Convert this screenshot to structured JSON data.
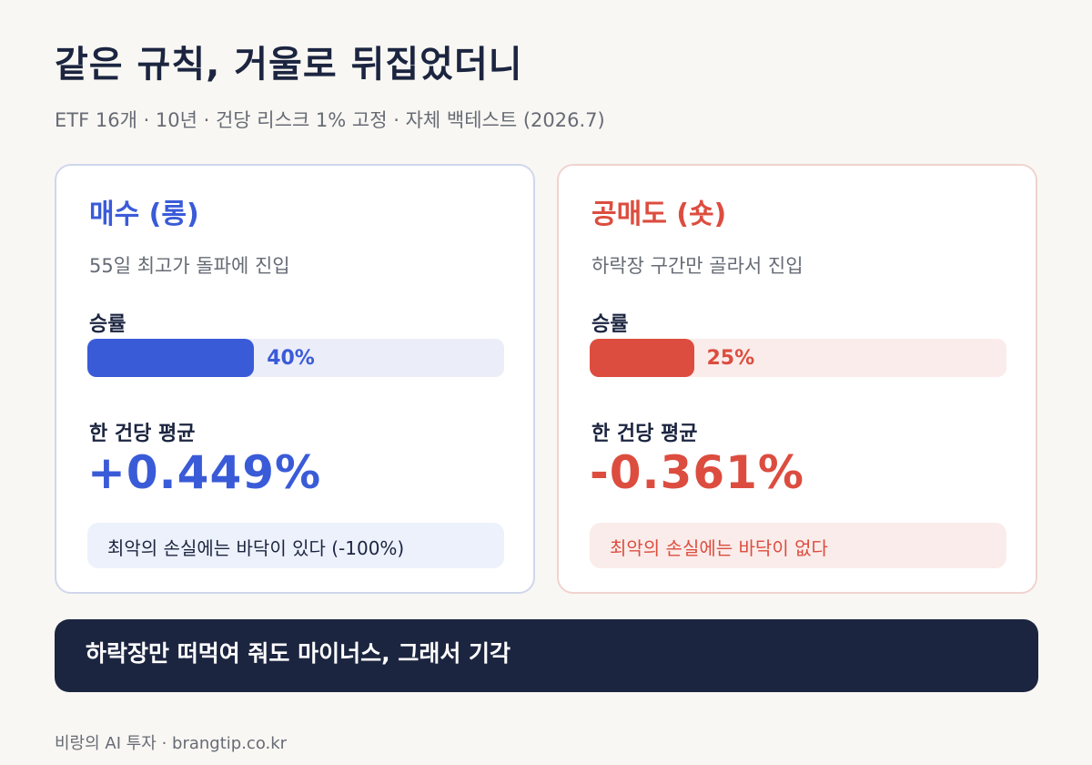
{
  "header": {
    "title": "같은 규칙, 거울로 뒤집었더니",
    "subtitle": "ETF 16개 · 10년 · 건당 리스크 1% 고정 · 자체 백테스트 (2026.7)"
  },
  "cards": {
    "long": {
      "title": "매수 (롱)",
      "description": "55일 최고가 돌파에 진입",
      "win_label": "승률",
      "win_rate_text": "40%",
      "win_rate": 40,
      "avg_label": "한 건당 평균",
      "avg_return": "+0.449%",
      "note": "최악의 손실에는 바닥이 있다 (-100%)",
      "color": "#3a5bd8"
    },
    "short": {
      "title": "공매도 (숏)",
      "description": "하락장 구간만 골라서 진입",
      "win_label": "승률",
      "win_rate_text": "25%",
      "win_rate": 25,
      "avg_label": "한 건당 평균",
      "avg_return": "-0.361%",
      "note": "최악의 손실에는 바닥이 없다",
      "color": "#dc4d3f"
    }
  },
  "banner": {
    "text": "하락장만 떠먹여 줘도 마이너스, 그래서 기각"
  },
  "footer": {
    "text": "비랑의 AI 투자 · brangtip.co.kr"
  }
}
